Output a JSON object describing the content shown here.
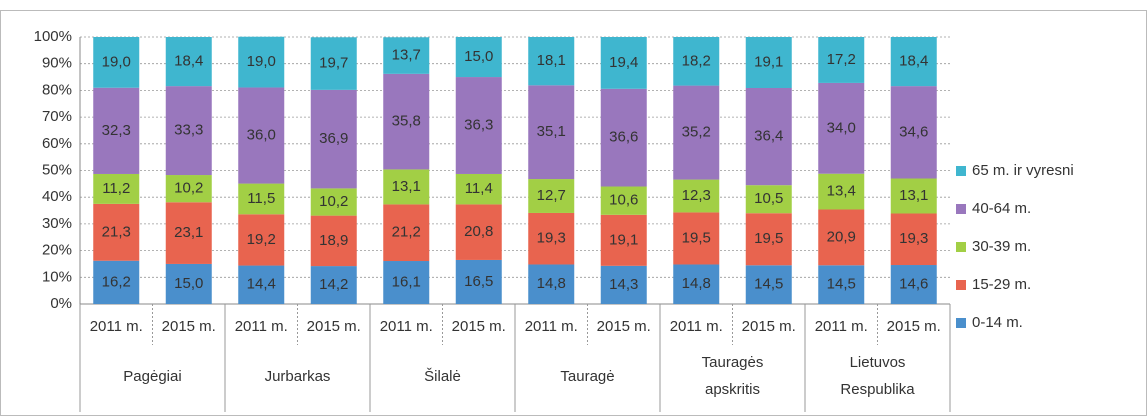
{
  "chart_data": {
    "type": "stacked_bar",
    "categories": [
      "2011 m.",
      "2015 m.",
      "2011 m.",
      "2015 m.",
      "2011 m.",
      "2015 m.",
      "2011 m.",
      "2015 m.",
      "2011 m.",
      "2015 m.",
      "2011 m.",
      "2015 m."
    ],
    "groups": [
      "Pagėgiai",
      "Jurbarkas",
      "Šilalė",
      "Tauragė",
      "Tauragės apskritis",
      "Lietuvos Respublika"
    ],
    "series": [
      {
        "name": "0-14 m.",
        "color": "#4a8fcc",
        "values": [
          16.2,
          15.0,
          14.4,
          14.2,
          16.1,
          16.5,
          14.8,
          14.3,
          14.8,
          14.5,
          14.5,
          14.6
        ],
        "value_labels": [
          "16,2",
          "15,0",
          "14,4",
          "14,2",
          "16,1",
          "16,5",
          "14,8",
          "14,3",
          "14,8",
          "14,5",
          "14,5",
          "14,6"
        ]
      },
      {
        "name": "15-29 m.",
        "color": "#e8644f",
        "values": [
          21.3,
          23.1,
          19.2,
          18.9,
          21.2,
          20.8,
          19.3,
          19.1,
          19.5,
          19.5,
          20.9,
          19.3
        ],
        "value_labels": [
          "21,3",
          "23,1",
          "19,2",
          "18,9",
          "21,2",
          "20,8",
          "19,3",
          "19,1",
          "19,5",
          "19,5",
          "20,9",
          "19,3"
        ]
      },
      {
        "name": "30-39 m.",
        "color": "#a2cf45",
        "values": [
          11.2,
          10.2,
          11.5,
          10.2,
          13.1,
          11.4,
          12.7,
          10.6,
          12.3,
          10.5,
          13.4,
          13.1
        ],
        "value_labels": [
          "11,2",
          "10,2",
          "11,5",
          "10,2",
          "13,1",
          "11,4",
          "12,7",
          "10,6",
          "12,3",
          "10,5",
          "13,4",
          "13,1"
        ]
      },
      {
        "name": "40-64 m.",
        "color": "#9977bd",
        "values": [
          32.3,
          33.3,
          36.0,
          36.9,
          35.8,
          36.3,
          35.1,
          36.6,
          35.2,
          36.4,
          34.0,
          34.6
        ],
        "value_labels": [
          "32,3",
          "33,3",
          "36,0",
          "36,9",
          "35,8",
          "36,3",
          "35,1",
          "36,6",
          "35,2",
          "36,4",
          "34,0",
          "34,6"
        ]
      },
      {
        "name": "65 m. ir vyresni",
        "color": "#3fb6cf",
        "values": [
          19.0,
          18.4,
          19.0,
          19.7,
          13.7,
          15.0,
          18.1,
          19.4,
          18.2,
          19.1,
          17.2,
          18.4
        ],
        "value_labels": [
          "19,0",
          "18,4",
          "19,0",
          "19,7",
          "13,7",
          "15,0",
          "18,1",
          "19,4",
          "18,2",
          "19,1",
          "17,2",
          "18,4"
        ]
      }
    ],
    "ylim": [
      0,
      100
    ],
    "yticks": [
      {
        "value": 0,
        "label": "0%"
      },
      {
        "value": 10,
        "label": "10%"
      },
      {
        "value": 20,
        "label": "20%"
      },
      {
        "value": 30,
        "label": "30%"
      },
      {
        "value": 40,
        "label": "40%"
      },
      {
        "value": 50,
        "label": "50%"
      },
      {
        "value": 60,
        "label": "60%"
      },
      {
        "value": 70,
        "label": "70%"
      },
      {
        "value": 80,
        "label": "80%"
      },
      {
        "value": 90,
        "label": "90%"
      },
      {
        "value": 100,
        "label": "100%"
      }
    ],
    "grid": true,
    "legend": "right"
  }
}
